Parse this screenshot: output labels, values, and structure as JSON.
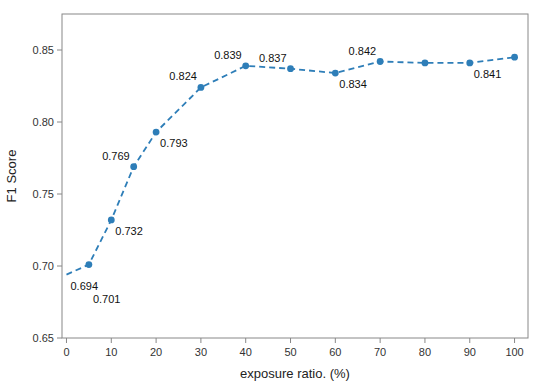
{
  "chart_data": {
    "type": "line",
    "x": [
      0,
      5,
      10,
      15,
      20,
      30,
      40,
      50,
      60,
      70,
      80,
      90,
      100
    ],
    "series": [
      {
        "type": "line",
        "line_style": "dashed",
        "color": "#2e7eb8",
        "values": [
          0.694,
          0.701,
          0.732,
          0.769,
          0.793,
          0.824,
          0.839,
          0.837,
          0.834,
          0.842,
          0.841,
          0.841,
          0.845
        ]
      },
      {
        "type": "scatter",
        "marker": "circle",
        "color": "#2e7eb8",
        "values": [
          null,
          0.701,
          0.732,
          0.769,
          0.793,
          0.824,
          0.839,
          0.837,
          0.834,
          0.842,
          0.841,
          0.841,
          0.845
        ]
      }
    ],
    "annotations": [
      {
        "text": "0.694",
        "x": 0,
        "y": 0.694
      },
      {
        "text": "0.701",
        "x": 5,
        "y": 0.701
      },
      {
        "text": "0.732",
        "x": 10,
        "y": 0.732
      },
      {
        "text": "0.769",
        "x": 15,
        "y": 0.769
      },
      {
        "text": "0.793",
        "x": 20,
        "y": 0.793
      },
      {
        "text": "0.824",
        "x": 30,
        "y": 0.824
      },
      {
        "text": "0.839",
        "x": 40,
        "y": 0.839
      },
      {
        "text": "0.837",
        "x": 50,
        "y": 0.837
      },
      {
        "text": "0.834",
        "x": 60,
        "y": 0.834
      },
      {
        "text": "0.842",
        "x": 70,
        "y": 0.842
      },
      {
        "text": "0.841",
        "x": 90,
        "y": 0.841
      }
    ],
    "xlabel": "exposure ratio. (%)",
    "ylabel": "F1 Score",
    "xlim": [
      -1,
      103
    ],
    "ylim": [
      0.65,
      0.875
    ],
    "xticks": [
      0,
      10,
      20,
      30,
      40,
      50,
      60,
      70,
      80,
      90,
      100
    ],
    "yticks": [
      0.65,
      {
        "value": 0.7,
        "label": "0.70"
      },
      0.75,
      {
        "value": 0.8,
        "label": "0.80"
      },
      0.85
    ],
    "grid": false
  }
}
